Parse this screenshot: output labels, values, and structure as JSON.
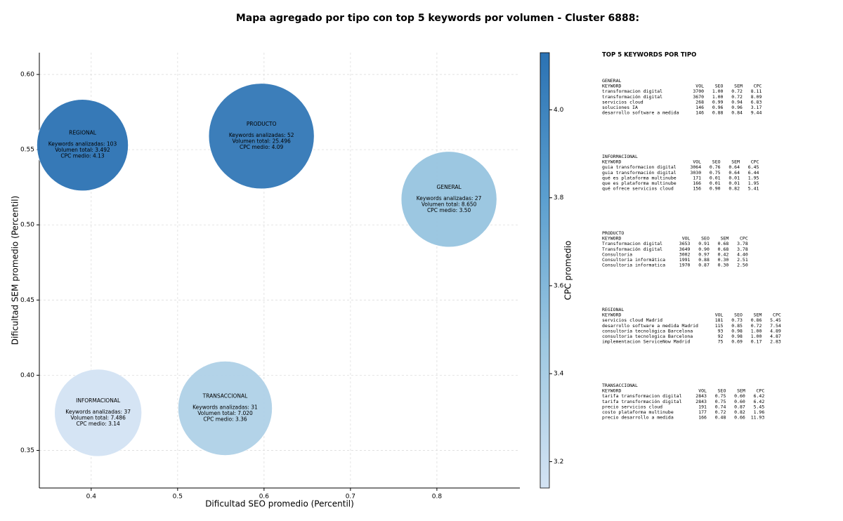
{
  "chart_data": {
    "type": "bubble",
    "title": "Mapa agregado por tipo con top 5 keywords por volumen - Cluster 6888:",
    "x_label": "Dificultad SEO promedio (Percentil)",
    "y_label": "Dificultad SEM promedio (Percentil)",
    "colorbar_label": "CPC promedio",
    "xlim": [
      0.34,
      0.896
    ],
    "ylim": [
      0.325,
      0.6145
    ],
    "xticks": [
      0.4,
      0.5,
      0.6,
      0.7,
      0.8
    ],
    "yticks": [
      0.35,
      {
        "value": 0.4,
        "label": "0.40"
      },
      0.45,
      {
        "value": 0.5,
        "label": "0.50"
      },
      0.55,
      {
        "value": 0.6,
        "label": "0.60"
      }
    ],
    "clim": [
      3.14,
      4.13
    ],
    "cticks": [
      3.2,
      3.4,
      3.6,
      3.8,
      {
        "value": 4,
        "label": "4.0"
      }
    ],
    "colormap": [
      "#d3e3f3",
      "#9dc8e1",
      "#5b9fcf",
      "#2b72b3"
    ],
    "grid": true,
    "points": {
      "x": [
        0.39,
        0.597,
        0.814,
        0.408,
        0.555
      ],
      "y": [
        0.553,
        0.559,
        0.517,
        0.375,
        0.378
      ],
      "sizes": [
        65,
        75,
        68,
        62,
        67
      ],
      "cpc": [
        4.13,
        4.09,
        3.5,
        3.14,
        3.36
      ],
      "labels": [
        [
          "REGIONAL",
          "Keywords analizadas: 103",
          "Volumen total: 3.492",
          "CPC medio: 4.13"
        ],
        [
          "PRODUCTO",
          "Keywords analizadas: 52",
          "Volumen total: 25.496",
          "CPC medio: 4.09"
        ],
        [
          "GENERAL",
          "Keywords analizadas: 27",
          "Volumen total: 8.650",
          "CPC medio: 3.50"
        ],
        [
          "INFORMACIONAL",
          "Keywords analizadas: 37",
          "Volumen total: 7.486",
          "CPC medio: 3.14"
        ],
        [
          "TRANSACCIONAL",
          "Keywords analizadas: 31",
          "Volumen total: 7.020",
          "CPC medio: 3.36"
        ]
      ]
    },
    "side_panel": {
      "title": "TOP 5 KEYWORDS POR TIPO",
      "groups": [
        {
          "name": "GENERAL",
          "header": [
            "KEYWORD",
            "VOL",
            "SEO",
            "SEM",
            "CPC"
          ],
          "rows": [
            [
              "transformacion digital",
              "3700",
              "1.00",
              "0.72",
              "8.11"
            ],
            [
              "transformación digital",
              "3670",
              "1.00",
              "0.72",
              "8.09"
            ],
            [
              "servicios cloud",
              "268",
              "0.99",
              "0.94",
              "6.83"
            ],
            [
              "soluciones IA",
              "146",
              "0.96",
              "0.96",
              "3.17"
            ],
            [
              "desarrollo software a medida",
              "146",
              "0.88",
              "0.84",
              "9.44"
            ]
          ]
        },
        {
          "name": "INFORMACIONAL",
          "header": [
            "KEYWORD",
            "VOL",
            "SEO",
            "SEM",
            "CPC"
          ],
          "rows": [
            [
              "guia transformacion digital",
              "3064",
              "0.76",
              "0.64",
              "6.45"
            ],
            [
              "guia transformación digital",
              "3030",
              "0.75",
              "0.64",
              "6.44"
            ],
            [
              "qué es plataforma multinube",
              "171",
              "0.01",
              "0.01",
              "1.95"
            ],
            [
              "que es plataforma multinube",
              "166",
              "0.01",
              "0.01",
              "1.95"
            ],
            [
              "qué ofrece servicios cloud",
              "156",
              "0.90",
              "0.82",
              "5.41"
            ]
          ]
        },
        {
          "name": "PRODUCTO",
          "header": [
            "KEYWORD",
            "VOL",
            "SEO",
            "SEM",
            "CPC"
          ],
          "rows": [
            [
              "Transformacion digital",
              "3653",
              "0.91",
              "0.68",
              "3.78"
            ],
            [
              "Transformación digital",
              "3649",
              "0.90",
              "0.68",
              "3.78"
            ],
            [
              "Consultoria",
              "3002",
              "0.97",
              "0.42",
              "4.40"
            ],
            [
              "Consultoría informática",
              "1991",
              "0.88",
              "0.30",
              "2.51"
            ],
            [
              "Consultoria informatica",
              "1970",
              "0.87",
              "0.30",
              "2.50"
            ]
          ]
        },
        {
          "name": "REGIONAL",
          "header": [
            "KEYWORD",
            "VOL",
            "SEO",
            "SEM",
            "CPC"
          ],
          "rows": [
            [
              "servicios cloud Madrid",
              "181",
              "0.73",
              "0.86",
              "5.45"
            ],
            [
              "desarrollo software a medida Madrid",
              "115",
              "0.85",
              "0.72",
              "7.54"
            ],
            [
              "consultoría tecnológica Barcelona",
              "93",
              "0.98",
              "1.00",
              "4.89"
            ],
            [
              "consultoria tecnologica Barcelona",
              "92",
              "0.98",
              "1.00",
              "4.87"
            ],
            [
              "implementacion ServiceNow Madrid",
              "75",
              "0.69",
              "0.17",
              "2.83"
            ]
          ]
        },
        {
          "name": "TRANSACCIONAL",
          "header": [
            "KEYWORD",
            "VOL",
            "SEO",
            "SEM",
            "CPC"
          ],
          "rows": [
            [
              "tarifa transformacion digital",
              "2843",
              "0.75",
              "0.60",
              "6.42"
            ],
            [
              "tarifa transformación digital",
              "2843",
              "0.75",
              "0.60",
              "6.42"
            ],
            [
              "precio servicios cloud",
              "191",
              "0.74",
              "0.87",
              "5.45"
            ],
            [
              "costo plataforma multinube",
              "177",
              "0.72",
              "0.82",
              "1.96"
            ],
            [
              "precio desarrollo a medida",
              "166",
              "0.48",
              "0.66",
              "11.93"
            ]
          ]
        }
      ]
    }
  }
}
